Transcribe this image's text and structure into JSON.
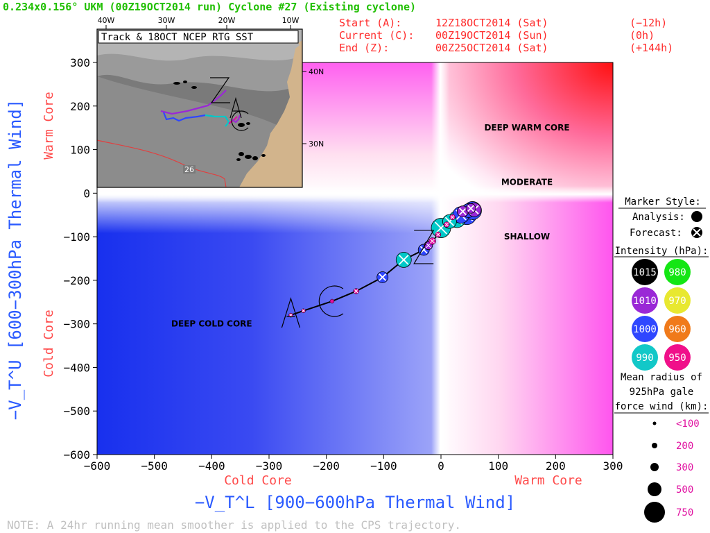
{
  "header": {
    "title": "0.234x0.156° UKM (00Z19OCT2014 run) Cyclone #27 (Existing cyclone)",
    "start_label": "Start (A):",
    "start_time": "12Z18OCT2014 (Sat)",
    "start_offset": "(−12h)",
    "current_label": "Current (C):",
    "current_time": "00Z19OCT2014 (Sun)",
    "current_offset": "(0h)",
    "end_label": "End (Z):",
    "end_time": "00Z25OCT2014 (Sat)",
    "end_offset": "(+144h)"
  },
  "colors": {
    "title_green": "#1fbf00",
    "info_red": "#ff2a2a",
    "axis_blue": "#2a5aff",
    "label_red": "#ff4a4a",
    "track_cyan": "#00c8c8",
    "track_blue": "#2f47ff",
    "track_purple": "#9a28d6",
    "track_magenta": "#e010a0"
  },
  "chart_data": {
    "type": "scatter",
    "xlabel": "−V_T^L [900−600hPa Thermal Wind]",
    "ylabel": "−V_T^U [600−300hPa Thermal Wind]",
    "x_left_label": "Cold Core",
    "x_right_label": "Warm Core",
    "y_top_label": "Warm Core",
    "y_bottom_label": "Cold Core",
    "xlim": [
      -600,
      300
    ],
    "ylim": [
      -600,
      300
    ],
    "xticks": [
      -600,
      -500,
      -400,
      -300,
      -200,
      -100,
      0,
      100,
      200,
      300
    ],
    "yticks": [
      -600,
      -500,
      -400,
      -300,
      -200,
      -100,
      0,
      100,
      200,
      300
    ],
    "region_labels": [
      {
        "text": "DEEP WARM CORE",
        "x": 150,
        "y": 150
      },
      {
        "text": "MODERATE",
        "x": 150,
        "y": 25
      },
      {
        "text": "SHALLOW",
        "x": 150,
        "y": -100
      },
      {
        "text": "DEEP COLD CORE",
        "x": -400,
        "y": -300
      }
    ],
    "track": [
      {
        "x": -262,
        "y": -280,
        "r": 3,
        "color": "magenta",
        "marker": "forecast",
        "label": "A"
      },
      {
        "x": -240,
        "y": -270,
        "r": 3,
        "color": "magenta",
        "marker": "forecast"
      },
      {
        "x": -190,
        "y": -248,
        "r": 3,
        "color": "magenta",
        "marker": "analysis",
        "label": "C"
      },
      {
        "x": -148,
        "y": -225,
        "r": 4,
        "color": "magenta",
        "marker": "forecast"
      },
      {
        "x": -102,
        "y": -193,
        "r": 8,
        "color": "blue",
        "marker": "forecast"
      },
      {
        "x": -65,
        "y": -153,
        "r": 11,
        "color": "cyan",
        "marker": "forecast"
      },
      {
        "x": -30,
        "y": -130,
        "r": 8,
        "color": "blue",
        "marker": "forecast",
        "label": "Z"
      },
      {
        "x": -22,
        "y": -120,
        "r": 6,
        "color": "purple",
        "marker": "forecast"
      },
      {
        "x": -15,
        "y": -110,
        "r": 5,
        "color": "magenta",
        "marker": "forecast"
      },
      {
        "x": -5,
        "y": -95,
        "r": 4,
        "color": "magenta",
        "marker": "forecast"
      },
      {
        "x": 0,
        "y": -80,
        "r": 14,
        "color": "cyan",
        "marker": "forecast"
      },
      {
        "x": 10,
        "y": -72,
        "r": 4,
        "color": "magenta",
        "marker": "forecast"
      },
      {
        "x": 15,
        "y": -65,
        "r": 10,
        "color": "cyan",
        "marker": "forecast"
      },
      {
        "x": 20,
        "y": -55,
        "r": 4,
        "color": "magenta",
        "marker": "forecast"
      },
      {
        "x": 28,
        "y": -60,
        "r": 12,
        "color": "cyan",
        "marker": "forecast"
      },
      {
        "x": 35,
        "y": -50,
        "r": 12,
        "color": "blue",
        "marker": "forecast"
      },
      {
        "x": 38,
        "y": -42,
        "r": 8,
        "color": "purple",
        "marker": "forecast"
      },
      {
        "x": 45,
        "y": -50,
        "r": 14,
        "color": "blue",
        "marker": "forecast"
      },
      {
        "x": 48,
        "y": -40,
        "r": 10,
        "color": "blue",
        "marker": "forecast"
      },
      {
        "x": 55,
        "y": -40,
        "r": 13,
        "color": "blue",
        "marker": "analysis"
      },
      {
        "x": 58,
        "y": -38,
        "r": 10,
        "color": "purple",
        "marker": "forecast"
      },
      {
        "x": 52,
        "y": -35,
        "r": 7,
        "color": "purple",
        "marker": "forecast"
      }
    ]
  },
  "inset": {
    "title": "Track & 18OCT NCEP RTG SST",
    "lon_labels": [
      "40W",
      "30W",
      "20W",
      "10W"
    ],
    "lat_labels": [
      "40N",
      "30N"
    ],
    "contour_label": "26"
  },
  "legend": {
    "marker_style_title": "Marker Style:",
    "analysis_label": "Analysis:",
    "forecast_label": "Forecast:",
    "intensity_title": "Intensity (hPa):",
    "intensity_items": [
      {
        "label": "1015",
        "color": "#000000",
        "text_color": "#ffffff"
      },
      {
        "label": "980",
        "color": "#14e614",
        "text_color": "#ffffff"
      },
      {
        "label": "1010",
        "color": "#9a28d6",
        "text_color": "#ffffff"
      },
      {
        "label": "970",
        "color": "#e8e830",
        "text_color": "#ffffff"
      },
      {
        "label": "1000",
        "color": "#2f47ff",
        "text_color": "#ffffff"
      },
      {
        "label": "960",
        "color": "#f07a1a",
        "text_color": "#ffffff"
      },
      {
        "label": "990",
        "color": "#12c8c8",
        "text_color": "#ffffff"
      },
      {
        "label": "950",
        "color": "#f0108a",
        "text_color": "#ffffff"
      }
    ],
    "radius_title_1": "Mean radius of",
    "radius_title_2": "925hPa gale",
    "radius_title_3": "force wind (km):",
    "radius_items": [
      {
        "label": "<100",
        "r": 2.5
      },
      {
        "label": "200",
        "r": 4
      },
      {
        "label": "300",
        "r": 6
      },
      {
        "label": "500",
        "r": 10
      },
      {
        "label": "750",
        "r": 15
      }
    ]
  },
  "note": "NOTE:  A 24hr running mean smoother is applied to the CPS trajectory."
}
